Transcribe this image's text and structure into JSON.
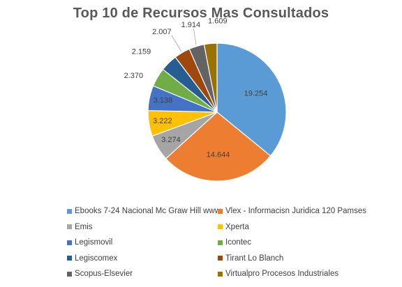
{
  "chart_data": {
    "type": "pie",
    "title": "Top 10 de Recursos Mas Consultados",
    "categories": [
      "Ebooks 7-24 Nacional Mc Graw Hill www",
      "Vlex - Informacisn Juridica 120 Pamses",
      "Emis",
      "Xperta",
      "Legismovil",
      "Icontec",
      "Legiscomex",
      "Tirant Lo Blanch",
      "Scopus-Elsevier",
      "Virtualpro Procesos Industriales"
    ],
    "values": [
      19254,
      14644,
      3274,
      3222,
      3138,
      2370,
      2159,
      2007,
      1914,
      1609
    ],
    "data_labels": [
      "19.254",
      "14.644",
      "3.274",
      "3.222",
      "3.138",
      "2.370",
      "2.159",
      "2.007",
      "1.914",
      "1.609"
    ],
    "colors": [
      "#5B9BD5",
      "#ED7D31",
      "#A5A5A5",
      "#FFC000",
      "#4472C4",
      "#70AD47",
      "#255E91",
      "#9E480E",
      "#636363",
      "#997300"
    ],
    "legend_position": "bottom"
  }
}
